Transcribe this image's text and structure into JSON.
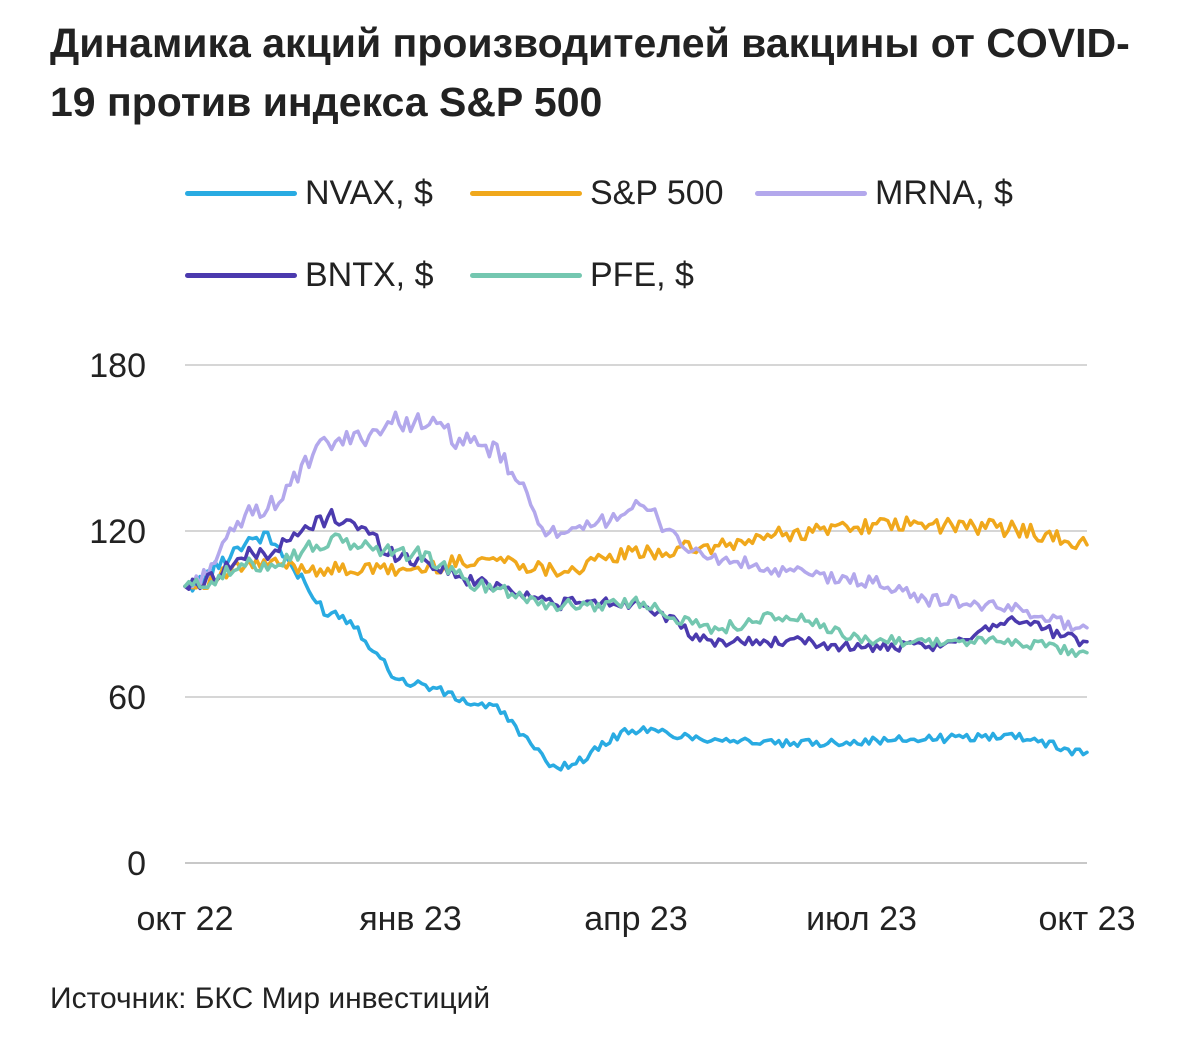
{
  "title": "Динамика акций производителей вакцины от COVID-19 против индекса S&P 500",
  "source": "Источник: БКС Мир инвестиций",
  "legend": [
    {
      "label": "NVAX, $",
      "color": "#29ABE2"
    },
    {
      "label": "S&P 500",
      "color": "#F0A81C"
    },
    {
      "label": "MRNA, $",
      "color": "#B3A8EC"
    },
    {
      "label": "BNTX, $",
      "color": "#4B3AAE"
    },
    {
      "label": "PFE, $",
      "color": "#74C7B0"
    }
  ],
  "chart_data": {
    "type": "line",
    "title": "Динамика акций производителей вакцины от COVID-19 против индекса S&P 500",
    "xlabel": "",
    "ylabel": "",
    "x_ticks": [
      "окт 22",
      "янв 23",
      "апр 23",
      "июл 23",
      "окт 23"
    ],
    "y_ticks": [
      0,
      60,
      120,
      180
    ],
    "ylim": [
      0,
      180
    ],
    "grid": "horizontal",
    "legend_position": "top",
    "x": [
      "2022-10",
      "2022-11",
      "2022-12",
      "2023-01",
      "2023-02",
      "2023-03",
      "2023-04",
      "2023-05",
      "2023-06",
      "2023-07",
      "2023-08",
      "2023-09",
      "2023-10"
    ],
    "series": [
      {
        "name": "NVAX, $",
        "color": "#29ABE2",
        "values": [
          100,
          118,
          90,
          65,
          57,
          35,
          48,
          45,
          43,
          44,
          45,
          46,
          40
        ]
      },
      {
        "name": "S&P 500",
        "color": "#F0A81C",
        "values": [
          100,
          108,
          106,
          106,
          110,
          106,
          112,
          114,
          119,
          122,
          122,
          121,
          115
        ]
      },
      {
        "name": "MRNA, $",
        "color": "#B3A8EC",
        "values": [
          100,
          128,
          152,
          160,
          150,
          118,
          128,
          110,
          105,
          102,
          95,
          92,
          85
        ]
      },
      {
        "name": "BNTX, $",
        "color": "#4B3AAE",
        "values": [
          100,
          112,
          125,
          110,
          101,
          94,
          94,
          80,
          80,
          78,
          78,
          88,
          80
        ]
      },
      {
        "name": "PFE, $",
        "color": "#74C7B0",
        "values": [
          100,
          108,
          116,
          112,
          100,
          93,
          94,
          85,
          89,
          81,
          80,
          80,
          76
        ]
      }
    ]
  }
}
